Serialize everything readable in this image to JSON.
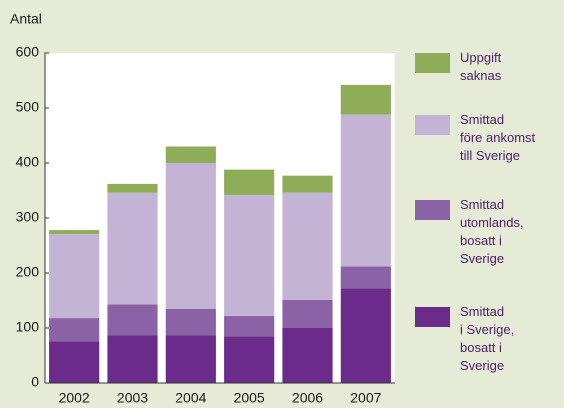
{
  "chart_data": {
    "type": "stacked_bar",
    "y_label": "Antal",
    "categories": [
      "2002",
      "2003",
      "2004",
      "2005",
      "2006",
      "2007"
    ],
    "series": [
      {
        "name": "Smittad\ni Sverige,\nbosatt i\nSverige",
        "color": "#6a2b8b",
        "values": [
          76,
          87,
          87,
          85,
          100,
          172
        ]
      },
      {
        "name": "Smittad\nutomlands,\nbosatt i\nSverige",
        "color": "#8c62a6",
        "values": [
          42,
          56,
          48,
          37,
          51,
          40
        ]
      },
      {
        "name": "Smittad\nföre ankomst\ntill Sverige",
        "color": "#c3b3d5",
        "values": [
          153,
          203,
          265,
          220,
          195,
          276
        ]
      },
      {
        "name": "Uppgift\nsaknas",
        "color": "#8fac58",
        "values": [
          7,
          16,
          30,
          46,
          31,
          54
        ]
      }
    ],
    "ylim": [
      0,
      600
    ],
    "yticks": [
      0,
      100,
      200,
      300,
      400,
      500,
      600
    ],
    "grid": false
  }
}
